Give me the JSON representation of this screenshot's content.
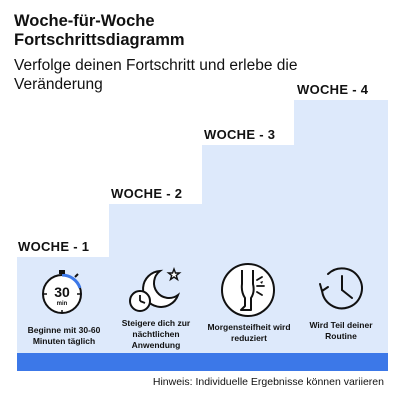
{
  "header": {
    "title": "Woche-für-Woche Fortschrittsdiagramm",
    "subtitle": "Verfolge deinen Fortschritt und erlebe die Veränderung"
  },
  "weeks": [
    {
      "label": "WOCHE - 1",
      "caption": "Beginne mit 30-60 Minuten täglich",
      "icon": "stopwatch-30-min-icon",
      "icon_text": "30",
      "icon_subtext": "min"
    },
    {
      "label": "WOCHE - 2",
      "caption": "Steigere dich zur nächtlichen Anwendung",
      "icon": "moon-stars-clock-icon"
    },
    {
      "label": "WOCHE - 3",
      "caption": "Morgensteifheit wird reduziert",
      "icon": "leg-relief-icon"
    },
    {
      "label": "WOCHE - 4",
      "caption": "Wird Teil deiner Routine",
      "icon": "clock-routine-icon"
    }
  ],
  "footer": {
    "note": "Hinweis: Individuelle Ergebnisse können variieren"
  },
  "colors": {
    "column": "#dde9fb",
    "bar": "#3c78e8",
    "accent_ring": "#3c78e8"
  }
}
